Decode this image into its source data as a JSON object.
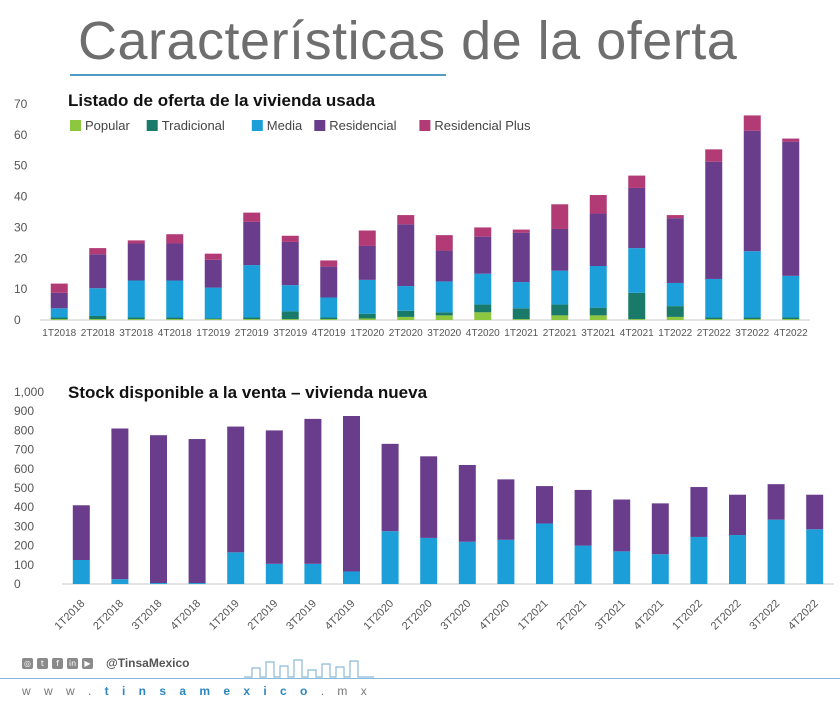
{
  "page_title": "Características de la oferta",
  "footer": {
    "handle": "@TinsaMexico",
    "url_prefix": "w w w . ",
    "url_brand": "t i n s a m e x i c o",
    "url_suffix": " . m x",
    "social_icons": [
      "instagram-icon",
      "twitter-icon",
      "facebook-icon",
      "linkedin-icon",
      "youtube-icon"
    ]
  },
  "chart_data": [
    {
      "type": "bar",
      "stacked": true,
      "title": "Listado de oferta de la vivienda usada",
      "ylim": [
        0,
        70
      ],
      "yticks": [
        0,
        10,
        20,
        30,
        40,
        50,
        60,
        70
      ],
      "categories": [
        "1T2018",
        "2T2018",
        "3T2018",
        "4T2018",
        "1T2019",
        "2T2019",
        "3T2019",
        "4T2019",
        "1T2020",
        "2T2020",
        "3T2020",
        "4T2020",
        "1T2021",
        "2T2021",
        "3T2021",
        "4T2021",
        "1T2022",
        "2T2022",
        "3T2022",
        "4T2022"
      ],
      "legend_position": "top-left",
      "series": [
        {
          "name": "Popular",
          "color": "#8dc63f",
          "values": [
            0.3,
            0.3,
            0.3,
            0.3,
            0.3,
            0.3,
            0.3,
            0.3,
            0.5,
            1.0,
            1.5,
            2.5,
            0.3,
            1.5,
            1.5,
            0.3,
            1.0,
            0.3,
            0.3,
            0.3
          ]
        },
        {
          "name": "Tradicional",
          "color": "#1a7a6a",
          "values": [
            0.5,
            1.0,
            0.5,
            0.5,
            0.2,
            0.5,
            2.5,
            0.5,
            1.5,
            2.0,
            1.0,
            2.5,
            3.5,
            3.5,
            2.5,
            8.5,
            3.5,
            0.5,
            0.5,
            0.5
          ]
        },
        {
          "name": "Media",
          "color": "#1c9fd8",
          "values": [
            3,
            9,
            12,
            12,
            10,
            17,
            8.5,
            6.5,
            11,
            8,
            10,
            10,
            8.5,
            11,
            13.5,
            14.5,
            7.5,
            12.5,
            21.5,
            13.5
          ]
        },
        {
          "name": "Residencial",
          "color": "#6a3d8c",
          "values": [
            5,
            11,
            12,
            12,
            9,
            14,
            14,
            10,
            11,
            20,
            10,
            12,
            16,
            13.5,
            17,
            19.5,
            21,
            38,
            39,
            43.5
          ]
        },
        {
          "name": "Residencial Plus",
          "color": "#b23a75",
          "values": [
            3,
            2,
            1,
            3,
            2,
            3,
            2,
            2,
            5,
            3,
            5,
            3,
            1,
            8,
            6,
            4,
            1,
            4,
            5,
            1
          ]
        }
      ]
    },
    {
      "type": "bar",
      "stacked": true,
      "title": "Stock disponible a la venta – vivienda nueva",
      "ylim": [
        0,
        1000
      ],
      "yticks": [
        0,
        100,
        200,
        300,
        400,
        500,
        600,
        700,
        800,
        900,
        1000
      ],
      "ytick_labels": [
        "0",
        "100",
        "200",
        "300",
        "400",
        "500",
        "600",
        "700",
        "800",
        "900",
        "1,000"
      ],
      "categories": [
        "1T2018",
        "2T2018",
        "3T2018",
        "4T2018",
        "1T2019",
        "2T2019",
        "3T2019",
        "4T2019",
        "1T2020",
        "2T2020",
        "3T2020",
        "4T2020",
        "1T2021",
        "2T2021",
        "3T2021",
        "4T2021",
        "1T2022",
        "2T2022",
        "3T2022",
        "4T2022"
      ],
      "series": [
        {
          "color": "#1c9fd8",
          "values": [
            125,
            25,
            5,
            5,
            165,
            105,
            105,
            65,
            275,
            240,
            220,
            230,
            315,
            200,
            170,
            155,
            245,
            255,
            335,
            285
          ]
        },
        {
          "color": "#6a3d8c",
          "values": [
            285,
            785,
            770,
            750,
            655,
            695,
            755,
            810,
            455,
            425,
            400,
            315,
            195,
            290,
            270,
            265,
            260,
            210,
            185,
            180
          ]
        }
      ]
    }
  ]
}
